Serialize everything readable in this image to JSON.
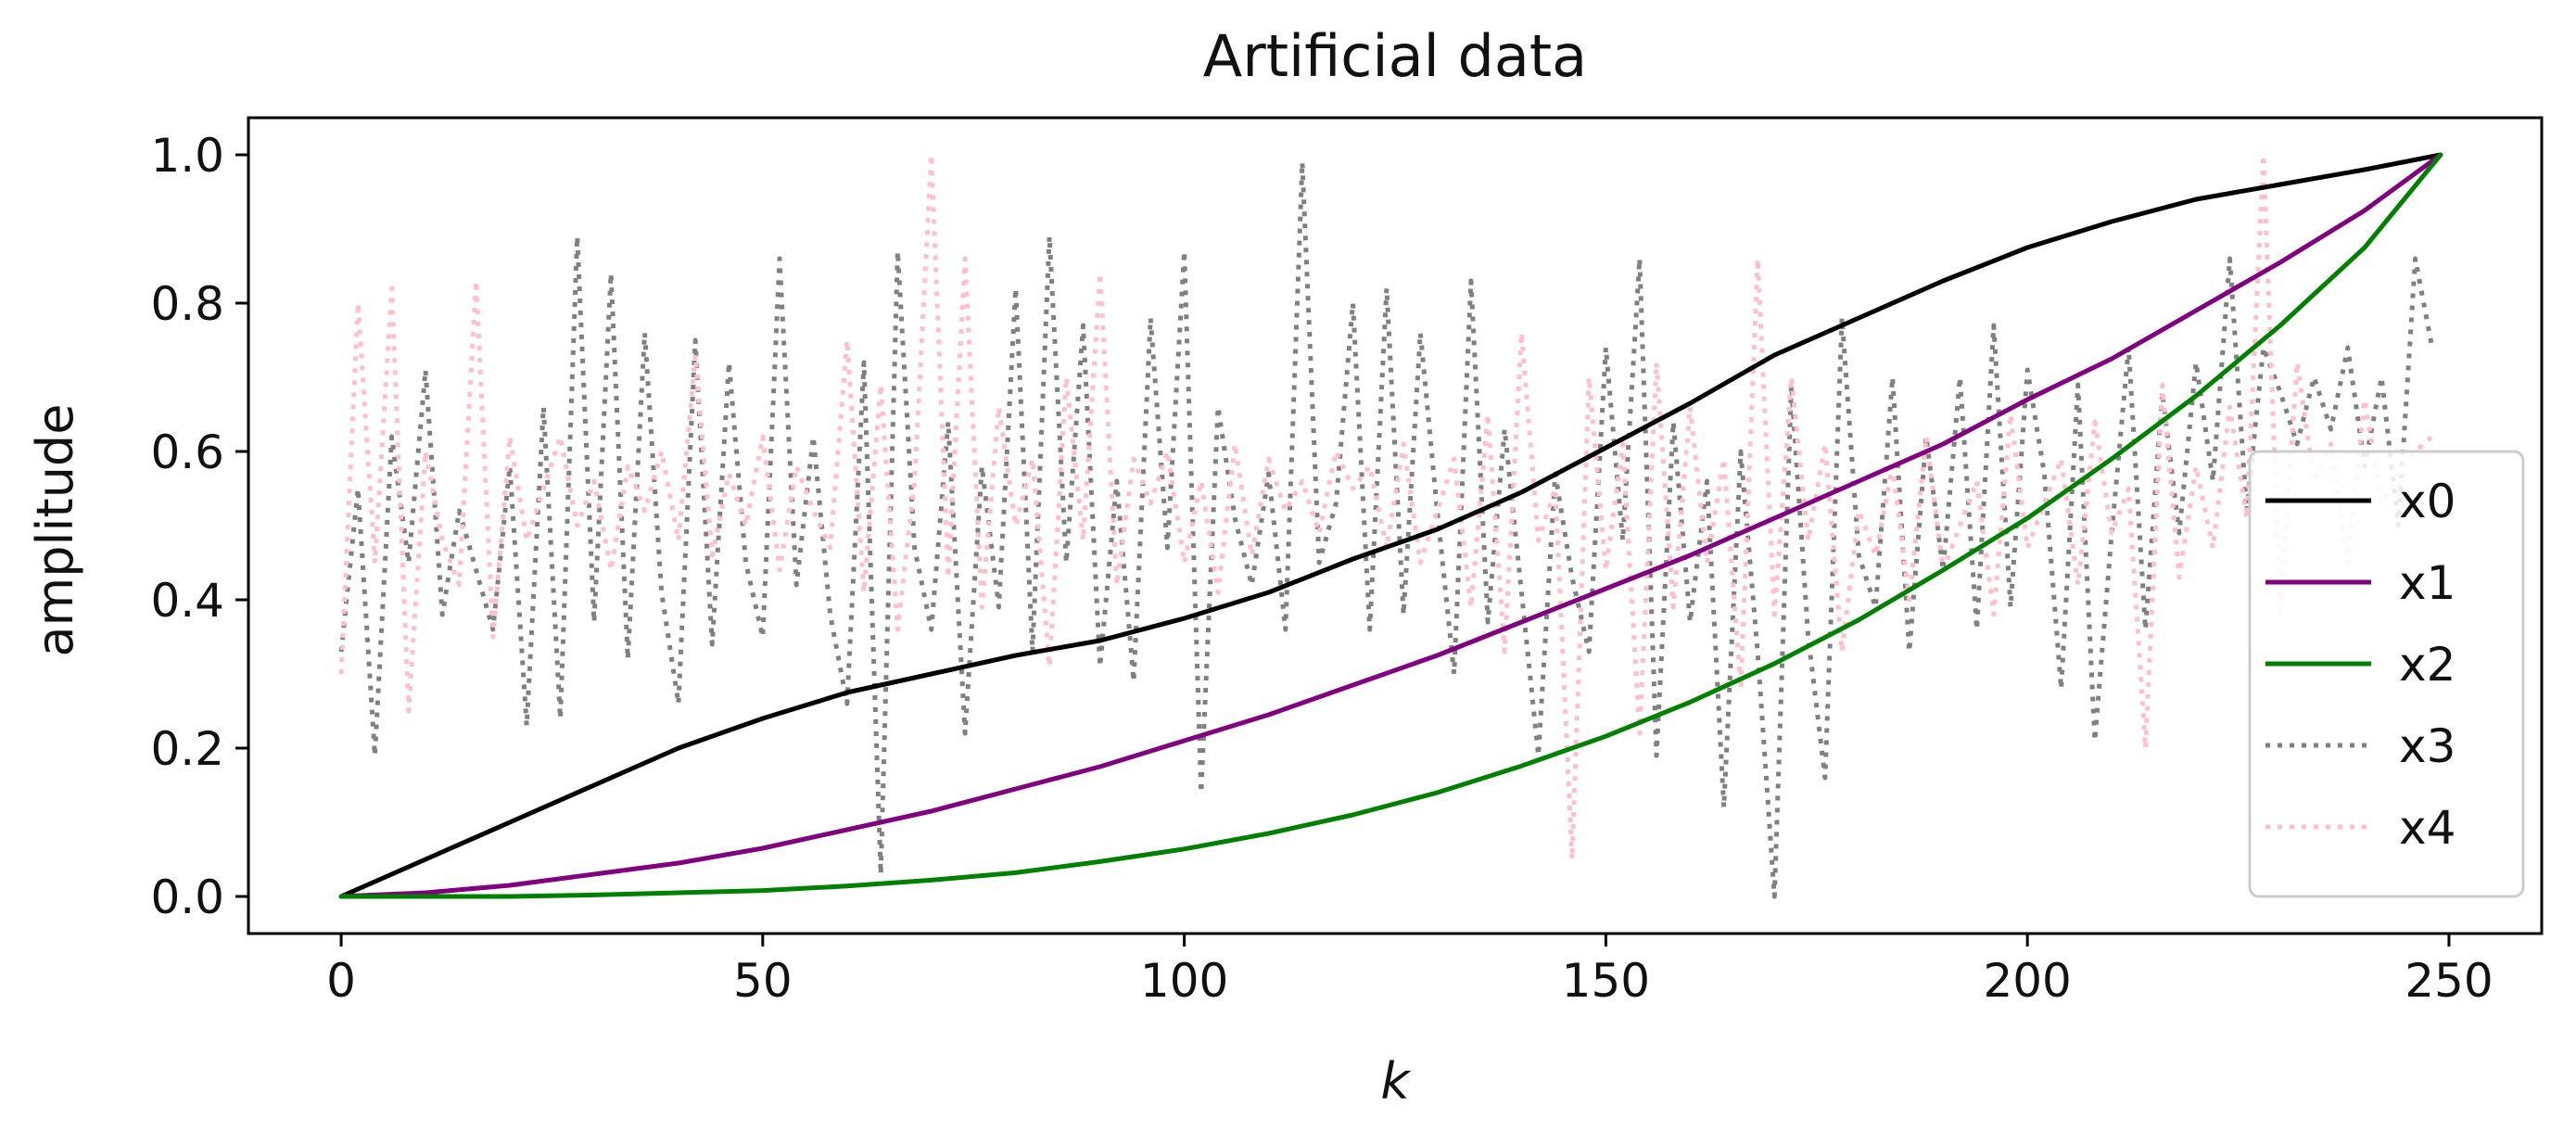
{
  "chart_data": {
    "type": "line",
    "title": "Artificial data",
    "xlabel": "k",
    "ylabel": "amplitude",
    "xlim": [
      -11,
      261
    ],
    "ylim": [
      -0.05,
      1.05
    ],
    "x_ticks": [
      0,
      50,
      100,
      150,
      200,
      250
    ],
    "x_tick_labels": [
      "0",
      "50",
      "100",
      "150",
      "200",
      "250"
    ],
    "y_ticks": [
      0.0,
      0.2,
      0.4,
      0.6,
      0.8,
      1.0
    ],
    "y_tick_labels": [
      "0.0",
      "0.2",
      "0.4",
      "0.6",
      "0.8",
      "1.0"
    ],
    "grid": false,
    "legend_position": "right",
    "series": [
      {
        "name": "x0",
        "color": "#000000",
        "style": "solid",
        "x": [
          0,
          10,
          20,
          30,
          40,
          50,
          60,
          70,
          80,
          90,
          100,
          110,
          120,
          130,
          140,
          150,
          160,
          170,
          180,
          190,
          200,
          210,
          220,
          230,
          240,
          249
        ],
        "y": [
          0.0,
          0.05,
          0.1,
          0.15,
          0.2,
          0.24,
          0.275,
          0.3,
          0.325,
          0.345,
          0.375,
          0.41,
          0.455,
          0.495,
          0.545,
          0.605,
          0.665,
          0.73,
          0.78,
          0.83,
          0.875,
          0.91,
          0.94,
          0.96,
          0.98,
          1.0
        ]
      },
      {
        "name": "x1",
        "color": "#800080",
        "style": "solid",
        "x": [
          0,
          10,
          20,
          30,
          40,
          50,
          60,
          70,
          80,
          90,
          100,
          110,
          120,
          130,
          140,
          150,
          160,
          170,
          180,
          190,
          200,
          210,
          220,
          230,
          240,
          249
        ],
        "y": [
          0.0,
          0.005,
          0.015,
          0.03,
          0.045,
          0.065,
          0.09,
          0.115,
          0.145,
          0.175,
          0.21,
          0.245,
          0.285,
          0.325,
          0.37,
          0.415,
          0.46,
          0.51,
          0.56,
          0.61,
          0.67,
          0.725,
          0.79,
          0.855,
          0.925,
          1.0
        ]
      },
      {
        "name": "x2",
        "color": "#008000",
        "style": "solid",
        "x": [
          0,
          10,
          20,
          30,
          40,
          50,
          60,
          70,
          80,
          90,
          100,
          110,
          120,
          130,
          140,
          150,
          160,
          170,
          180,
          190,
          200,
          210,
          220,
          230,
          240,
          249
        ],
        "y": [
          0.0,
          0.0,
          0.0,
          0.002,
          0.005,
          0.008,
          0.014,
          0.022,
          0.032,
          0.047,
          0.064,
          0.085,
          0.11,
          0.14,
          0.176,
          0.216,
          0.262,
          0.314,
          0.373,
          0.44,
          0.51,
          0.59,
          0.675,
          0.77,
          0.875,
          1.0
        ]
      },
      {
        "name": "x3",
        "color": "#808080",
        "style": "dotted",
        "x": [
          0,
          2,
          4,
          6,
          8,
          10,
          12,
          14,
          16,
          18,
          20,
          22,
          24,
          26,
          28,
          30,
          32,
          34,
          36,
          38,
          40,
          42,
          44,
          46,
          48,
          50,
          52,
          54,
          56,
          58,
          60,
          62,
          64,
          66,
          68,
          70,
          72,
          74,
          76,
          78,
          80,
          82,
          84,
          86,
          88,
          90,
          92,
          94,
          96,
          98,
          100,
          102,
          104,
          106,
          108,
          110,
          112,
          114,
          116,
          118,
          120,
          122,
          124,
          126,
          128,
          130,
          132,
          134,
          136,
          138,
          140,
          142,
          144,
          146,
          148,
          150,
          152,
          154,
          156,
          158,
          160,
          162,
          164,
          166,
          168,
          170,
          172,
          174,
          176,
          178,
          180,
          182,
          184,
          186,
          188,
          190,
          192,
          194,
          196,
          198,
          200,
          202,
          204,
          206,
          208,
          210,
          212,
          214,
          216,
          218,
          220,
          222,
          224,
          226,
          228,
          230,
          232,
          234,
          236,
          238,
          240,
          242,
          244,
          246,
          248
        ],
        "y": [
          0.33,
          0.55,
          0.19,
          0.62,
          0.45,
          0.71,
          0.38,
          0.52,
          0.44,
          0.36,
          0.58,
          0.23,
          0.66,
          0.24,
          0.89,
          0.37,
          0.84,
          0.32,
          0.76,
          0.41,
          0.26,
          0.75,
          0.34,
          0.72,
          0.45,
          0.35,
          0.86,
          0.42,
          0.62,
          0.38,
          0.26,
          0.72,
          0.03,
          0.87,
          0.47,
          0.36,
          0.64,
          0.22,
          0.58,
          0.39,
          0.82,
          0.33,
          0.89,
          0.45,
          0.77,
          0.31,
          0.56,
          0.29,
          0.78,
          0.47,
          0.87,
          0.14,
          0.66,
          0.51,
          0.42,
          0.57,
          0.36,
          0.99,
          0.45,
          0.53,
          0.8,
          0.36,
          0.82,
          0.38,
          0.76,
          0.52,
          0.3,
          0.83,
          0.37,
          0.63,
          0.41,
          0.19,
          0.57,
          0.43,
          0.33,
          0.74,
          0.48,
          0.86,
          0.19,
          0.64,
          0.37,
          0.56,
          0.12,
          0.6,
          0.33,
          0.0,
          0.69,
          0.35,
          0.16,
          0.78,
          0.46,
          0.39,
          0.7,
          0.33,
          0.62,
          0.44,
          0.7,
          0.36,
          0.77,
          0.39,
          0.71,
          0.57,
          0.28,
          0.69,
          0.21,
          0.49,
          0.74,
          0.36,
          0.68,
          0.49,
          0.72,
          0.56,
          0.86,
          0.52,
          0.74,
          0.68,
          0.61,
          0.7,
          0.63,
          0.74,
          0.58,
          0.7,
          0.5,
          0.86,
          0.74
        ]
      },
      {
        "name": "x4",
        "color": "#ffc0cb",
        "style": "dotted",
        "x": [
          0,
          2,
          4,
          6,
          8,
          10,
          12,
          14,
          16,
          18,
          20,
          22,
          24,
          26,
          28,
          30,
          32,
          34,
          36,
          38,
          40,
          42,
          44,
          46,
          48,
          50,
          52,
          54,
          56,
          58,
          60,
          62,
          64,
          66,
          68,
          70,
          72,
          74,
          76,
          78,
          80,
          82,
          84,
          86,
          88,
          90,
          92,
          94,
          96,
          98,
          100,
          102,
          104,
          106,
          108,
          110,
          112,
          114,
          116,
          118,
          120,
          122,
          124,
          126,
          128,
          130,
          132,
          134,
          136,
          138,
          140,
          142,
          144,
          146,
          148,
          150,
          152,
          154,
          156,
          158,
          160,
          162,
          164,
          166,
          168,
          170,
          172,
          174,
          176,
          178,
          180,
          182,
          184,
          186,
          188,
          190,
          192,
          194,
          196,
          198,
          200,
          202,
          204,
          206,
          208,
          210,
          212,
          214,
          216,
          218,
          220,
          222,
          224,
          226,
          228,
          230,
          232,
          234,
          236,
          238,
          240,
          242,
          244,
          246,
          248
        ],
        "y": [
          0.3,
          0.8,
          0.45,
          0.82,
          0.25,
          0.6,
          0.48,
          0.42,
          0.83,
          0.35,
          0.62,
          0.48,
          0.55,
          0.62,
          0.5,
          0.56,
          0.44,
          0.58,
          0.52,
          0.6,
          0.48,
          0.73,
          0.46,
          0.57,
          0.5,
          0.62,
          0.44,
          0.58,
          0.52,
          0.47,
          0.75,
          0.41,
          0.69,
          0.36,
          0.56,
          1.0,
          0.43,
          0.86,
          0.39,
          0.66,
          0.5,
          0.59,
          0.31,
          0.7,
          0.48,
          0.84,
          0.42,
          0.59,
          0.53,
          0.6,
          0.45,
          0.56,
          0.41,
          0.61,
          0.46,
          0.59,
          0.52,
          0.56,
          0.49,
          0.6,
          0.55,
          0.58,
          0.47,
          0.61,
          0.45,
          0.52,
          0.59,
          0.39,
          0.65,
          0.33,
          0.76,
          0.48,
          0.55,
          0.05,
          0.7,
          0.44,
          0.61,
          0.22,
          0.72,
          0.39,
          0.66,
          0.45,
          0.59,
          0.28,
          0.86,
          0.38,
          0.7,
          0.48,
          0.61,
          0.33,
          0.52,
          0.46,
          0.58,
          0.4,
          0.62,
          0.44,
          0.5,
          0.56,
          0.38,
          0.65,
          0.47,
          0.53,
          0.59,
          0.42,
          0.64,
          0.49,
          0.55,
          0.2,
          0.69,
          0.43,
          0.58,
          0.47,
          0.66,
          0.51,
          1.0,
          0.38,
          0.72,
          0.56,
          0.61,
          0.45,
          0.67,
          0.53,
          0.57,
          0.6,
          0.62
        ]
      }
    ]
  }
}
